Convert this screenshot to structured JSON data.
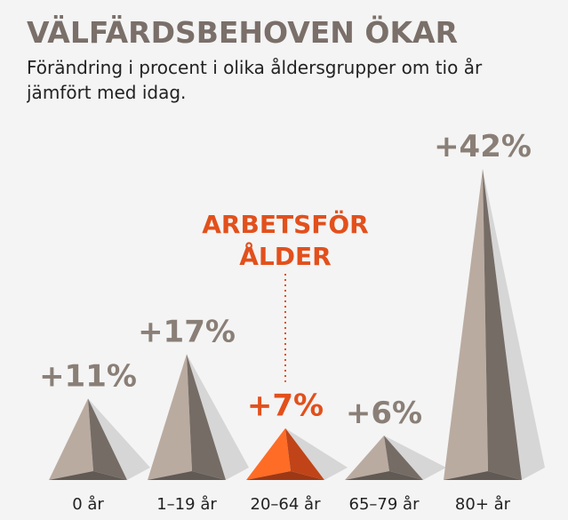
{
  "chart_data": {
    "type": "pyramid",
    "title": "VÄLFÄRDSBEHOVEN ÖKAR",
    "subtitle": "Förändring i procent i olika åldersgrupper om tio år jämfört med idag.",
    "categories": [
      "0 år",
      "1–19 år",
      "20–64 år",
      "65–79 år",
      "80+ år"
    ],
    "values": [
      11,
      17,
      7,
      6,
      42
    ],
    "value_labels": [
      "+11%",
      "+17%",
      "+7%",
      "+6%",
      "+42%"
    ],
    "color": "#8a7f77",
    "highlight_color": "#e2501c",
    "highlight_index": 2,
    "annotation": [
      "ARBETSFÖR",
      "ÅLDER"
    ]
  }
}
